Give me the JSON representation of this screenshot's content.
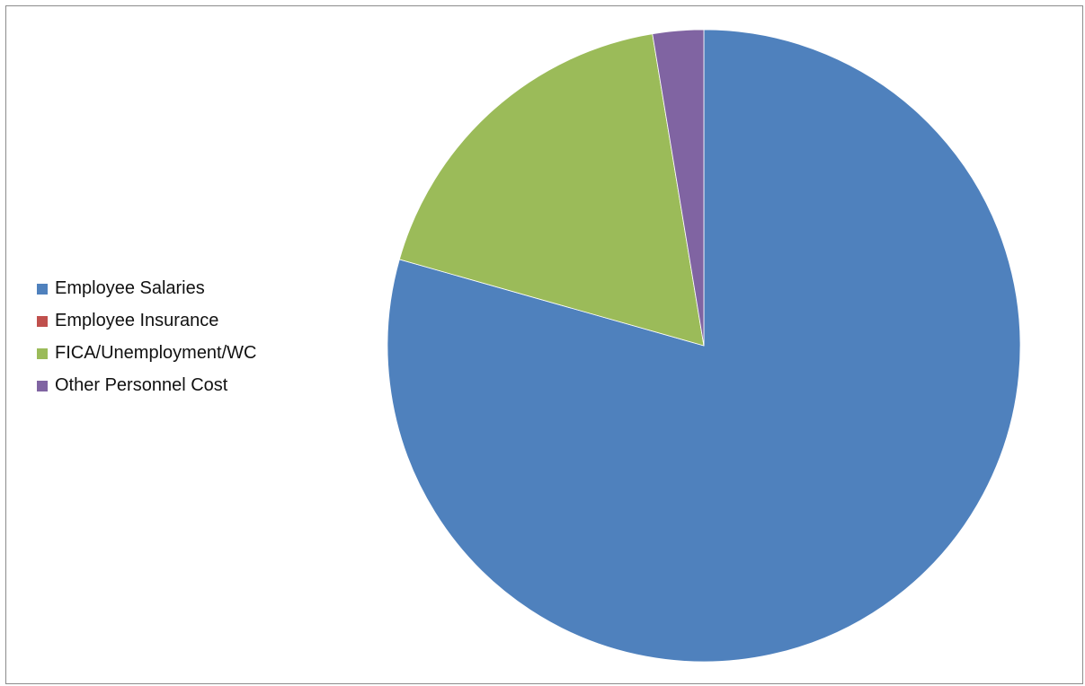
{
  "chart_data": {
    "type": "pie",
    "categories": [
      "Employee Salaries",
      "Employee Insurance",
      "FICA/Unemployment/WC",
      "Other Personnel Cost"
    ],
    "values": [
      79.4,
      0,
      18.0,
      2.6
    ],
    "colors": [
      "#4f81bd",
      "#c0504d",
      "#9bbb59",
      "#8064a2"
    ],
    "start_angle": "12 o'clock",
    "direction": "clockwise",
    "legend_position": "left",
    "title": ""
  }
}
